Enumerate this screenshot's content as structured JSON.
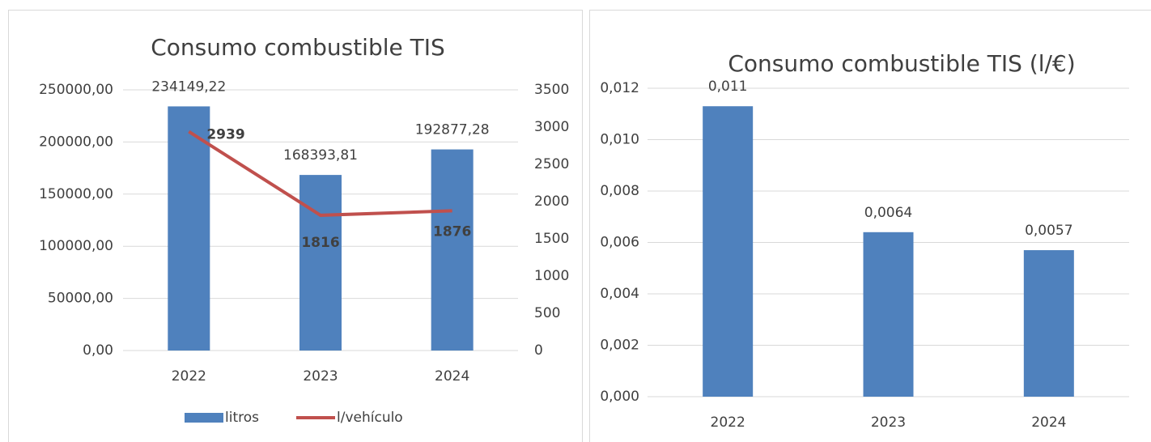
{
  "chart_data": [
    {
      "type": "combo",
      "title": "Consumo combustible TIS",
      "categories": [
        "2022",
        "2023",
        "2024"
      ],
      "series": [
        {
          "name": "litros",
          "type": "bar",
          "color": "#4f81bd",
          "values": [
            234149.22,
            168393.81,
            192877.28
          ],
          "value_labels": [
            "234149,22",
            "168393,81",
            "192877,28"
          ]
        },
        {
          "name": "l/vehículo",
          "type": "line",
          "axis": "y2",
          "color": "#c0504d",
          "values": [
            2939,
            1816,
            1876
          ]
        }
      ],
      "ylim": [
        0,
        250000
      ],
      "yticks": [
        {
          "value": 0,
          "label": "0,00"
        },
        {
          "value": 50000,
          "label": "50000,00"
        },
        {
          "value": 100000,
          "label": "100000,00"
        },
        {
          "value": 150000,
          "label": "150000,00"
        },
        {
          "value": 200000,
          "label": "200000,00"
        },
        {
          "value": 250000,
          "label": "250000,00"
        }
      ],
      "y2lim": [
        0,
        3500
      ],
      "y2ticks": [
        0,
        500,
        1000,
        1500,
        2000,
        2500,
        3000,
        3500
      ],
      "grid": true,
      "legend": "bottom"
    },
    {
      "type": "bar",
      "title": "Consumo combustible TIS (l/€)",
      "categories": [
        "2022",
        "2023",
        "2024"
      ],
      "values": [
        0.0113,
        0.0064,
        0.0057
      ],
      "value_labels": [
        "0,011",
        "0,0064",
        "0,0057"
      ],
      "color": "#4f81bd",
      "ylim": [
        0,
        0.012
      ],
      "yticks": [
        {
          "value": 0,
          "label": "0,000"
        },
        {
          "value": 0.002,
          "label": "0,002"
        },
        {
          "value": 0.004,
          "label": "0,004"
        },
        {
          "value": 0.006,
          "label": "0,006"
        },
        {
          "value": 0.008,
          "label": "0,008"
        },
        {
          "value": 0.01,
          "label": "0,010"
        },
        {
          "value": 0.012,
          "label": "0,012"
        }
      ],
      "grid": true
    }
  ]
}
